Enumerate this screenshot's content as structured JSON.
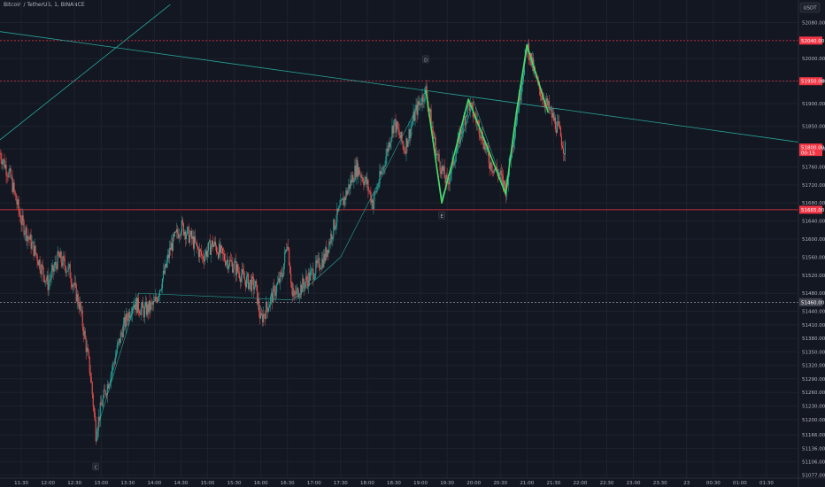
{
  "header": {
    "symbol_title": "Bitcoin / TetherUS, 1, BINANCE"
  },
  "currency_badge": "USDT",
  "chart_data": {
    "type": "candlestick",
    "title": "Bitcoin / TetherUS, 1, BINANCE",
    "y_unit": "USDT",
    "ylim": [
      51070,
      52130
    ],
    "y_ticks": [
      {
        "label": "52080.00",
        "value": 52080
      },
      {
        "label": "52000.00",
        "value": 52000
      },
      {
        "label": "51950.00",
        "value": 51950
      },
      {
        "label": "51900.00",
        "value": 51900
      },
      {
        "label": "51850.00",
        "value": 51850
      },
      {
        "label": "51800.00",
        "value": 51800
      },
      {
        "label": "51760.00",
        "value": 51760
      },
      {
        "label": "51720.00",
        "value": 51720
      },
      {
        "label": "51680.00",
        "value": 51680
      },
      {
        "label": "51640.00",
        "value": 51640
      },
      {
        "label": "51600.00",
        "value": 51600
      },
      {
        "label": "51560.00",
        "value": 51560
      },
      {
        "label": "51520.00",
        "value": 51520
      },
      {
        "label": "51480.00",
        "value": 51480
      },
      {
        "label": "51440.00",
        "value": 51440
      },
      {
        "label": "51410.00",
        "value": 51410
      },
      {
        "label": "51380.00",
        "value": 51380
      },
      {
        "label": "51350.00",
        "value": 51350
      },
      {
        "label": "51320.00",
        "value": 51320
      },
      {
        "label": "51290.00",
        "value": 51290
      },
      {
        "label": "51260.00",
        "value": 51260
      },
      {
        "label": "51230.00",
        "value": 51230
      },
      {
        "label": "51200.00",
        "value": 51200
      },
      {
        "label": "51166.00",
        "value": 51166
      },
      {
        "label": "51136.00",
        "value": 51136
      },
      {
        "label": "51106.00",
        "value": 51106
      },
      {
        "label": "51077.00",
        "value": 51077
      }
    ],
    "x_ticks": [
      "11:30",
      "12:00",
      "12:30",
      "13:00",
      "13:30",
      "14:00",
      "14:30",
      "15:00",
      "15:30",
      "16:00",
      "16:30",
      "17:00",
      "17:30",
      "18:00",
      "18:30",
      "19:00",
      "19:30",
      "20:00",
      "20:30",
      "21:00",
      "21:30",
      "22:00",
      "22:30",
      "23:00",
      "23:30",
      "23",
      "00:30",
      "01:00",
      "01:30"
    ],
    "x_ticks_t": [
      11.5,
      12,
      12.5,
      13,
      13.5,
      14,
      14.5,
      15,
      15.5,
      16,
      16.5,
      17,
      17.5,
      18,
      18.5,
      19,
      19.5,
      20,
      20.5,
      21,
      21.5,
      22,
      22.5,
      23,
      23.5,
      24,
      24.5,
      25,
      25.5
    ],
    "horizontal_lines": [
      {
        "value": 52040,
        "style": "dashed",
        "color": "#f23645",
        "label": "52040.00"
      },
      {
        "value": 51950,
        "style": "dashed",
        "color": "#f23645",
        "label": "51950.00"
      },
      {
        "value": 51665,
        "style": "solid",
        "color": "#f23645",
        "label": "51665.00"
      },
      {
        "value": 51460,
        "style": "dashed",
        "color": "#b2b5be",
        "label": "51460.00"
      }
    ],
    "current_price": {
      "value": 51800,
      "label": "51800.00",
      "countdown": "00:15"
    },
    "pattern_points": [
      {
        "label": "C",
        "t": 12.9,
        "price": 51170
      },
      {
        "label": "D",
        "t": 19.1,
        "price": 51930
      },
      {
        "label": "E",
        "t": 19.4,
        "price": 51690
      }
    ],
    "trend_lines": [
      {
        "name": "long-descending",
        "color": "#26a69a",
        "points": [
          [
            11.1,
            52060
          ],
          [
            26.1,
            51815
          ]
        ]
      },
      {
        "name": "ascending-left",
        "color": "#26a69a",
        "points": [
          [
            11.1,
            51820
          ],
          [
            14.3,
            52120
          ]
        ]
      }
    ],
    "zigzag": {
      "color": "#26a69a",
      "points": [
        [
          12.9,
          51170
        ],
        [
          13.7,
          51480
        ],
        [
          16.6,
          51465
        ],
        [
          17.5,
          51560
        ],
        [
          19.1,
          51930
        ],
        [
          19.4,
          51690
        ],
        [
          20.0,
          51905
        ],
        [
          20.6,
          51705
        ],
        [
          21.0,
          52020
        ],
        [
          21.4,
          51880
        ]
      ]
    },
    "harmonic_wave": {
      "color": "#4cd964",
      "points": [
        [
          19.1,
          51930
        ],
        [
          19.4,
          51680
        ],
        [
          19.9,
          51910
        ],
        [
          20.6,
          51700
        ],
        [
          20.8,
          51880
        ],
        [
          21.0,
          52030
        ],
        [
          21.4,
          51880
        ]
      ]
    },
    "price_path": [
      [
        11.1,
        51790
      ],
      [
        11.3,
        51735
      ],
      [
        11.5,
        51640
      ],
      [
        11.8,
        51560
      ],
      [
        12.0,
        51500
      ],
      [
        12.2,
        51560
      ],
      [
        12.4,
        51530
      ],
      [
        12.6,
        51450
      ],
      [
        12.8,
        51300
      ],
      [
        12.9,
        51170
      ],
      [
        13.0,
        51230
      ],
      [
        13.2,
        51310
      ],
      [
        13.4,
        51400
      ],
      [
        13.6,
        51460
      ],
      [
        13.8,
        51440
      ],
      [
        14.0,
        51455
      ],
      [
        14.2,
        51530
      ],
      [
        14.3,
        51580
      ],
      [
        14.5,
        51630
      ],
      [
        14.7,
        51600
      ],
      [
        14.9,
        51560
      ],
      [
        15.1,
        51590
      ],
      [
        15.3,
        51560
      ],
      [
        15.5,
        51540
      ],
      [
        15.7,
        51510
      ],
      [
        15.9,
        51495
      ],
      [
        16.0,
        51420
      ],
      [
        16.2,
        51470
      ],
      [
        16.4,
        51520
      ],
      [
        16.5,
        51600
      ],
      [
        16.6,
        51470
      ],
      [
        16.8,
        51500
      ],
      [
        17.0,
        51530
      ],
      [
        17.2,
        51560
      ],
      [
        17.4,
        51640
      ],
      [
        17.6,
        51700
      ],
      [
        17.8,
        51760
      ],
      [
        18.0,
        51720
      ],
      [
        18.1,
        51680
      ],
      [
        18.3,
        51760
      ],
      [
        18.5,
        51860
      ],
      [
        18.7,
        51800
      ],
      [
        18.9,
        51880
      ],
      [
        19.1,
        51930
      ],
      [
        19.3,
        51790
      ],
      [
        19.5,
        51720
      ],
      [
        19.7,
        51810
      ],
      [
        19.9,
        51900
      ],
      [
        20.1,
        51850
      ],
      [
        20.3,
        51770
      ],
      [
        20.5,
        51740
      ],
      [
        20.6,
        51710
      ],
      [
        20.8,
        51870
      ],
      [
        21.0,
        52030
      ],
      [
        21.2,
        51940
      ],
      [
        21.4,
        51890
      ],
      [
        21.6,
        51840
      ],
      [
        21.7,
        51800
      ]
    ]
  }
}
